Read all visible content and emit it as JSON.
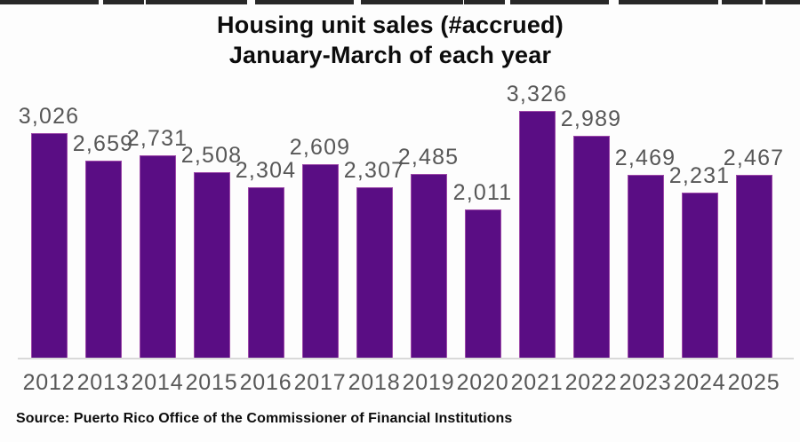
{
  "title": {
    "line1": "Housing unit sales (#accrued)",
    "line2": "January-March of each year"
  },
  "source": "Source: Puerto Rico Office of the Commissioner of Financial Institutions",
  "colors": {
    "bar_fill": "#5A0D84",
    "bar_edge": "#E086CD",
    "value_label": "#575757",
    "axis_label": "#575757",
    "baseline": "#D9D9D9",
    "title_text": "#0C0C0C",
    "background": "#FDFDFD",
    "top_border": "#161616"
  },
  "chart_data": {
    "type": "bar",
    "title": "Housing unit sales (#accrued) January-March of each year",
    "categories": [
      "2012",
      "2013",
      "2014",
      "2015",
      "2016",
      "2017",
      "2018",
      "2019",
      "2020",
      "2021",
      "2022",
      "2023",
      "2024",
      "2025"
    ],
    "values": [
      3026,
      2659,
      2731,
      2508,
      2304,
      2609,
      2307,
      2485,
      2011,
      3326,
      2989,
      2469,
      2231,
      2467
    ],
    "value_labels": [
      "3,026",
      "2,659",
      "2,731",
      "2,508",
      "2,304",
      "2,609",
      "2,307",
      "2,485",
      "2,011",
      "3,326",
      "2,989",
      "2,469",
      "2,231",
      "2,467"
    ],
    "xlabel": "",
    "ylabel": "",
    "ylim": [
      0,
      3326
    ],
    "grid": false,
    "legend": false,
    "data_labels_shown": true,
    "y_axis_shown": false
  }
}
